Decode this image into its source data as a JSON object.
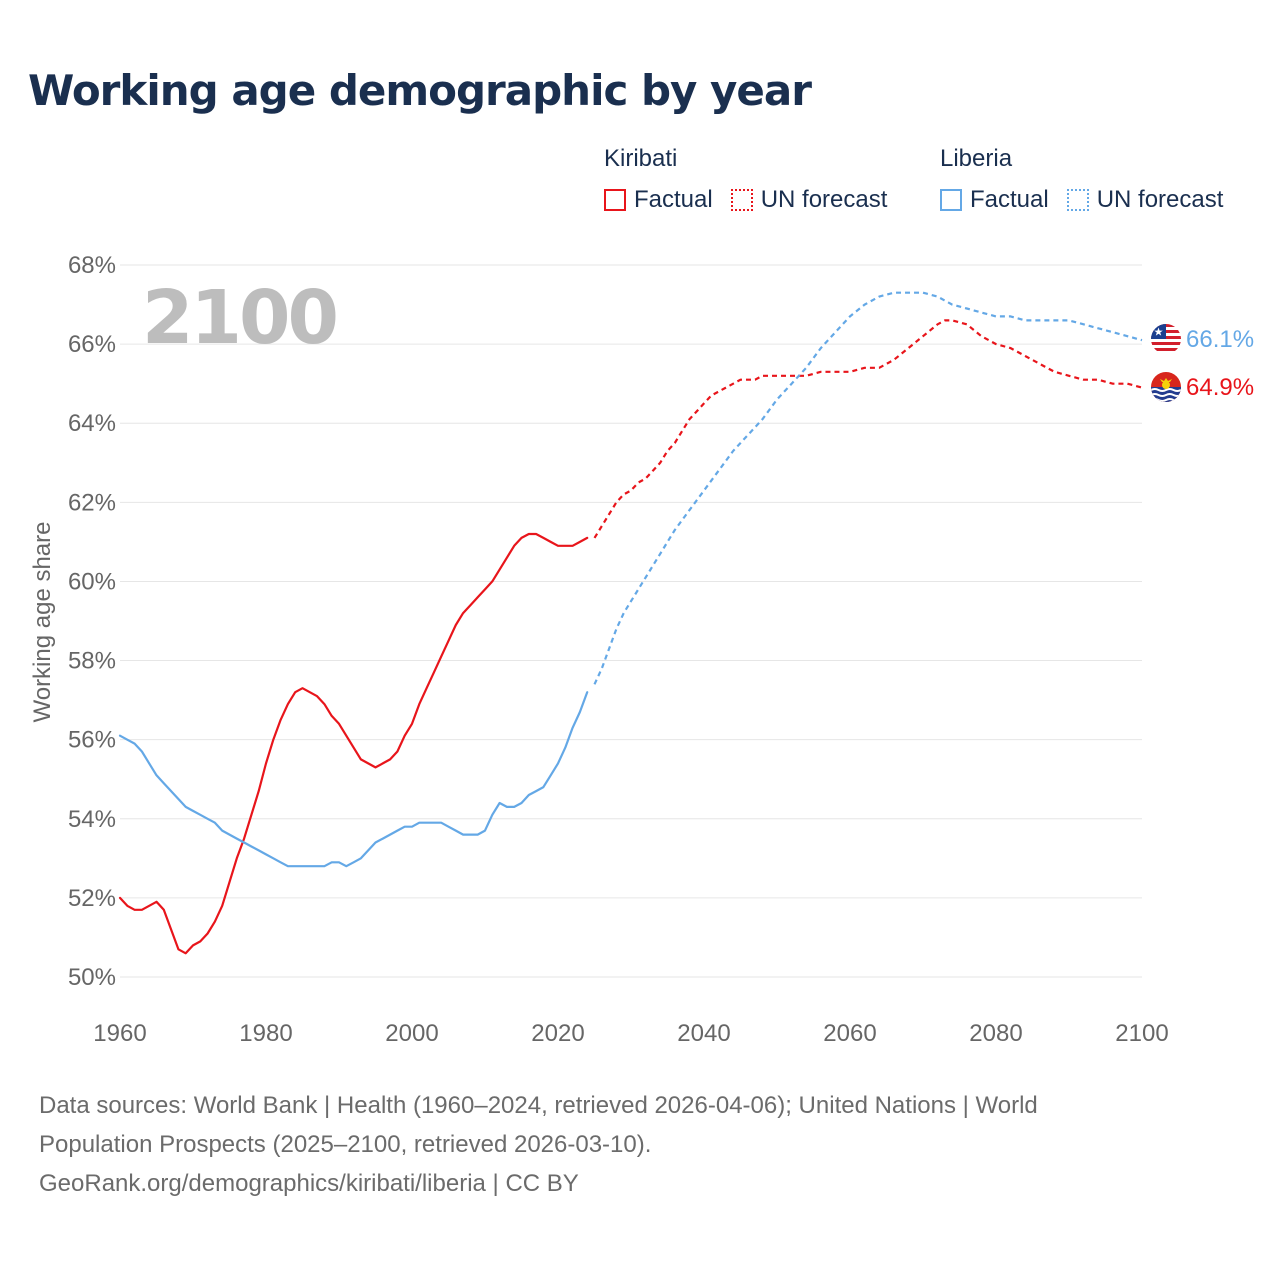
{
  "title": "Working age demographic by year",
  "year_label": "2100",
  "source_lines": [
    "Data sources: World Bank | Health (1960–2024, retrieved 2026-04-06); United Nations | World",
    "Population Prospects (2025–2100, retrieved 2026-03-10).",
    "GeoRank.org/demographics/kiribati/liberia | CC BY"
  ],
  "legend": {
    "kiribati": {
      "name": "Kiribati",
      "factual": "Factual",
      "forecast": "UN forecast"
    },
    "liberia": {
      "name": "Liberia",
      "factual": "Factual",
      "forecast": "UN forecast"
    }
  },
  "colors": {
    "kiribati": "#e8151b",
    "liberia": "#64a8e6",
    "grid": "#e6e6e6",
    "tick_text": "#666666",
    "title": "#1a2f4f",
    "year_label": "#bdbdbd"
  },
  "chart_data": {
    "type": "line",
    "title": "Working age demographic by year",
    "xlabel": "",
    "ylabel": "Working age share",
    "xlim": [
      1960,
      2100
    ],
    "ylim": [
      50,
      68
    ],
    "x_ticks": [
      1960,
      1980,
      2000,
      2020,
      2040,
      2060,
      2080,
      2100
    ],
    "y_ticks": [
      50,
      52,
      54,
      56,
      58,
      60,
      62,
      64,
      66,
      68
    ],
    "y_tick_labels": [
      "50%",
      "52%",
      "54%",
      "56%",
      "58%",
      "60%",
      "62%",
      "64%",
      "66%",
      "68%"
    ],
    "series": [
      {
        "name": "Kiribati",
        "key": "kiribati",
        "kind": "Factual",
        "points": [
          [
            1960,
            52.0
          ],
          [
            1961,
            51.8
          ],
          [
            1962,
            51.7
          ],
          [
            1963,
            51.7
          ],
          [
            1964,
            51.8
          ],
          [
            1965,
            51.9
          ],
          [
            1966,
            51.7
          ],
          [
            1967,
            51.2
          ],
          [
            1968,
            50.7
          ],
          [
            1969,
            50.6
          ],
          [
            1970,
            50.8
          ],
          [
            1971,
            50.9
          ],
          [
            1972,
            51.1
          ],
          [
            1973,
            51.4
          ],
          [
            1974,
            51.8
          ],
          [
            1975,
            52.4
          ],
          [
            1976,
            53.0
          ],
          [
            1977,
            53.5
          ],
          [
            1978,
            54.1
          ],
          [
            1979,
            54.7
          ],
          [
            1980,
            55.4
          ],
          [
            1981,
            56.0
          ],
          [
            1982,
            56.5
          ],
          [
            1983,
            56.9
          ],
          [
            1984,
            57.2
          ],
          [
            1985,
            57.3
          ],
          [
            1986,
            57.2
          ],
          [
            1987,
            57.1
          ],
          [
            1988,
            56.9
          ],
          [
            1989,
            56.6
          ],
          [
            1990,
            56.4
          ],
          [
            1991,
            56.1
          ],
          [
            1992,
            55.8
          ],
          [
            1993,
            55.5
          ],
          [
            1994,
            55.4
          ],
          [
            1995,
            55.3
          ],
          [
            1996,
            55.4
          ],
          [
            1997,
            55.5
          ],
          [
            1998,
            55.7
          ],
          [
            1999,
            56.1
          ],
          [
            2000,
            56.4
          ],
          [
            2001,
            56.9
          ],
          [
            2002,
            57.3
          ],
          [
            2003,
            57.7
          ],
          [
            2004,
            58.1
          ],
          [
            2005,
            58.5
          ],
          [
            2006,
            58.9
          ],
          [
            2007,
            59.2
          ],
          [
            2008,
            59.4
          ],
          [
            2009,
            59.6
          ],
          [
            2010,
            59.8
          ],
          [
            2011,
            60.0
          ],
          [
            2012,
            60.3
          ],
          [
            2013,
            60.6
          ],
          [
            2014,
            60.9
          ],
          [
            2015,
            61.1
          ],
          [
            2016,
            61.2
          ],
          [
            2017,
            61.2
          ],
          [
            2018,
            61.1
          ],
          [
            2019,
            61.0
          ],
          [
            2020,
            60.9
          ],
          [
            2021,
            60.9
          ],
          [
            2022,
            60.9
          ],
          [
            2023,
            61.0
          ],
          [
            2024,
            61.1
          ]
        ]
      },
      {
        "name": "Kiribati",
        "key": "kiribati",
        "kind": "UN forecast",
        "points": [
          [
            2025,
            61.1
          ],
          [
            2026,
            61.4
          ],
          [
            2027,
            61.7
          ],
          [
            2028,
            62.0
          ],
          [
            2029,
            62.2
          ],
          [
            2030,
            62.3
          ],
          [
            2031,
            62.5
          ],
          [
            2032,
            62.6
          ],
          [
            2033,
            62.8
          ],
          [
            2034,
            63.0
          ],
          [
            2035,
            63.3
          ],
          [
            2036,
            63.5
          ],
          [
            2037,
            63.8
          ],
          [
            2038,
            64.1
          ],
          [
            2039,
            64.3
          ],
          [
            2040,
            64.5
          ],
          [
            2041,
            64.7
          ],
          [
            2042,
            64.8
          ],
          [
            2043,
            64.9
          ],
          [
            2044,
            65.0
          ],
          [
            2045,
            65.1
          ],
          [
            2046,
            65.1
          ],
          [
            2047,
            65.1
          ],
          [
            2048,
            65.2
          ],
          [
            2049,
            65.2
          ],
          [
            2050,
            65.2
          ],
          [
            2052,
            65.2
          ],
          [
            2054,
            65.2
          ],
          [
            2056,
            65.3
          ],
          [
            2058,
            65.3
          ],
          [
            2060,
            65.3
          ],
          [
            2062,
            65.4
          ],
          [
            2064,
            65.4
          ],
          [
            2066,
            65.6
          ],
          [
            2068,
            65.9
          ],
          [
            2070,
            66.2
          ],
          [
            2072,
            66.5
          ],
          [
            2073,
            66.6
          ],
          [
            2074,
            66.6
          ],
          [
            2076,
            66.5
          ],
          [
            2078,
            66.2
          ],
          [
            2080,
            66.0
          ],
          [
            2082,
            65.9
          ],
          [
            2084,
            65.7
          ],
          [
            2086,
            65.5
          ],
          [
            2088,
            65.3
          ],
          [
            2090,
            65.2
          ],
          [
            2092,
            65.1
          ],
          [
            2094,
            65.1
          ],
          [
            2096,
            65.0
          ],
          [
            2098,
            65.0
          ],
          [
            2100,
            64.9
          ]
        ]
      },
      {
        "name": "Liberia",
        "key": "liberia",
        "kind": "Factual",
        "points": [
          [
            1960,
            56.1
          ],
          [
            1961,
            56.0
          ],
          [
            1962,
            55.9
          ],
          [
            1963,
            55.7
          ],
          [
            1964,
            55.4
          ],
          [
            1965,
            55.1
          ],
          [
            1966,
            54.9
          ],
          [
            1967,
            54.7
          ],
          [
            1968,
            54.5
          ],
          [
            1969,
            54.3
          ],
          [
            1970,
            54.2
          ],
          [
            1971,
            54.1
          ],
          [
            1972,
            54.0
          ],
          [
            1973,
            53.9
          ],
          [
            1974,
            53.7
          ],
          [
            1975,
            53.6
          ],
          [
            1976,
            53.5
          ],
          [
            1977,
            53.4
          ],
          [
            1978,
            53.3
          ],
          [
            1979,
            53.2
          ],
          [
            1980,
            53.1
          ],
          [
            1981,
            53.0
          ],
          [
            1982,
            52.9
          ],
          [
            1983,
            52.8
          ],
          [
            1984,
            52.8
          ],
          [
            1985,
            52.8
          ],
          [
            1986,
            52.8
          ],
          [
            1987,
            52.8
          ],
          [
            1988,
            52.8
          ],
          [
            1989,
            52.9
          ],
          [
            1990,
            52.9
          ],
          [
            1991,
            52.8
          ],
          [
            1992,
            52.9
          ],
          [
            1993,
            53.0
          ],
          [
            1994,
            53.2
          ],
          [
            1995,
            53.4
          ],
          [
            1996,
            53.5
          ],
          [
            1997,
            53.6
          ],
          [
            1998,
            53.7
          ],
          [
            1999,
            53.8
          ],
          [
            2000,
            53.8
          ],
          [
            2001,
            53.9
          ],
          [
            2002,
            53.9
          ],
          [
            2003,
            53.9
          ],
          [
            2004,
            53.9
          ],
          [
            2005,
            53.8
          ],
          [
            2006,
            53.7
          ],
          [
            2007,
            53.6
          ],
          [
            2008,
            53.6
          ],
          [
            2009,
            53.6
          ],
          [
            2010,
            53.7
          ],
          [
            2011,
            54.1
          ],
          [
            2012,
            54.4
          ],
          [
            2013,
            54.3
          ],
          [
            2014,
            54.3
          ],
          [
            2015,
            54.4
          ],
          [
            2016,
            54.6
          ],
          [
            2017,
            54.7
          ],
          [
            2018,
            54.8
          ],
          [
            2019,
            55.1
          ],
          [
            2020,
            55.4
          ],
          [
            2021,
            55.8
          ],
          [
            2022,
            56.3
          ],
          [
            2023,
            56.7
          ],
          [
            2024,
            57.2
          ]
        ]
      },
      {
        "name": "Liberia",
        "key": "liberia",
        "kind": "UN forecast",
        "points": [
          [
            2025,
            57.4
          ],
          [
            2026,
            57.8
          ],
          [
            2027,
            58.3
          ],
          [
            2028,
            58.8
          ],
          [
            2029,
            59.2
          ],
          [
            2030,
            59.5
          ],
          [
            2032,
            60.1
          ],
          [
            2034,
            60.7
          ],
          [
            2036,
            61.3
          ],
          [
            2038,
            61.8
          ],
          [
            2040,
            62.3
          ],
          [
            2042,
            62.8
          ],
          [
            2044,
            63.3
          ],
          [
            2046,
            63.7
          ],
          [
            2048,
            64.1
          ],
          [
            2050,
            64.6
          ],
          [
            2052,
            65.0
          ],
          [
            2054,
            65.4
          ],
          [
            2056,
            65.9
          ],
          [
            2058,
            66.3
          ],
          [
            2060,
            66.7
          ],
          [
            2062,
            67.0
          ],
          [
            2064,
            67.2
          ],
          [
            2066,
            67.3
          ],
          [
            2068,
            67.3
          ],
          [
            2070,
            67.3
          ],
          [
            2072,
            67.2
          ],
          [
            2074,
            67.0
          ],
          [
            2076,
            66.9
          ],
          [
            2078,
            66.8
          ],
          [
            2080,
            66.7
          ],
          [
            2082,
            66.7
          ],
          [
            2084,
            66.6
          ],
          [
            2086,
            66.6
          ],
          [
            2088,
            66.6
          ],
          [
            2090,
            66.6
          ],
          [
            2092,
            66.5
          ],
          [
            2094,
            66.4
          ],
          [
            2096,
            66.3
          ],
          [
            2098,
            66.2
          ],
          [
            2100,
            66.1
          ]
        ]
      }
    ],
    "end_labels": [
      {
        "key": "liberia",
        "country": "Liberia",
        "value": 66.1,
        "label": "66.1%"
      },
      {
        "key": "kiribati",
        "country": "Kiribati",
        "value": 64.9,
        "label": "64.9%"
      }
    ]
  }
}
